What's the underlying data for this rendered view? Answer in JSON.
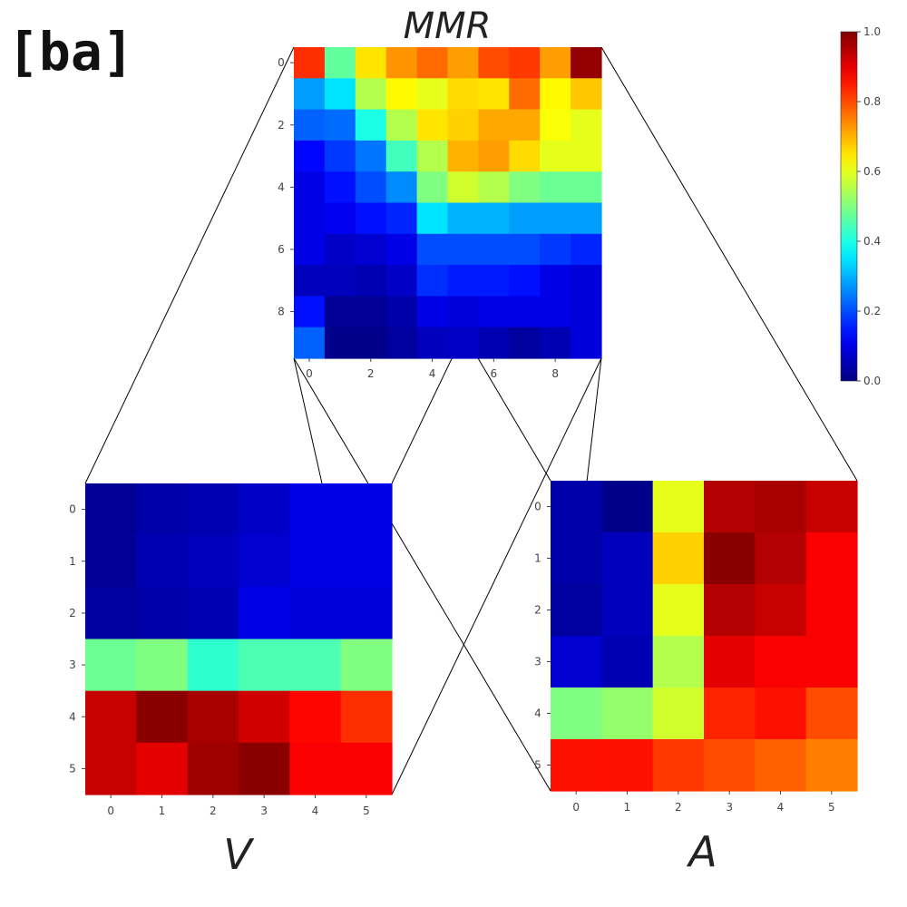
{
  "panel_label": "[ba]",
  "chart_data": [
    {
      "type": "heatmap",
      "title": "MMR",
      "x_ticks": [
        "0",
        "2",
        "4",
        "6",
        "8"
      ],
      "y_ticks": [
        "0",
        "2",
        "4",
        "6",
        "8"
      ],
      "colormap": "jet",
      "values": [
        [
          0.83,
          0.47,
          0.65,
          0.73,
          0.77,
          0.72,
          0.8,
          0.82,
          0.72,
          0.98
        ],
        [
          0.28,
          0.35,
          0.55,
          0.63,
          0.6,
          0.66,
          0.65,
          0.77,
          0.63,
          0.68
        ],
        [
          0.22,
          0.23,
          0.4,
          0.55,
          0.65,
          0.67,
          0.71,
          0.71,
          0.62,
          0.6
        ],
        [
          0.13,
          0.18,
          0.24,
          0.44,
          0.55,
          0.7,
          0.72,
          0.66,
          0.6,
          0.6
        ],
        [
          0.1,
          0.14,
          0.2,
          0.26,
          0.5,
          0.58,
          0.55,
          0.5,
          0.48,
          0.48
        ],
        [
          0.1,
          0.11,
          0.14,
          0.16,
          0.35,
          0.3,
          0.3,
          0.28,
          0.28,
          0.28
        ],
        [
          0.1,
          0.07,
          0.08,
          0.1,
          0.2,
          0.2,
          0.2,
          0.2,
          0.18,
          0.16
        ],
        [
          0.06,
          0.06,
          0.05,
          0.07,
          0.17,
          0.15,
          0.15,
          0.14,
          0.1,
          0.09
        ],
        [
          0.14,
          0.02,
          0.02,
          0.04,
          0.1,
          0.09,
          0.1,
          0.1,
          0.1,
          0.09
        ],
        [
          0.22,
          0.01,
          0.01,
          0.03,
          0.06,
          0.07,
          0.05,
          0.03,
          0.05,
          0.09
        ]
      ]
    },
    {
      "type": "heatmap",
      "title": "V",
      "x_ticks": [
        "0",
        "1",
        "2",
        "3",
        "4",
        "5"
      ],
      "y_ticks": [
        "0",
        "1",
        "2",
        "3",
        "4",
        "5"
      ],
      "colormap": "jet",
      "values": [
        [
          0.02,
          0.04,
          0.05,
          0.07,
          0.1,
          0.1
        ],
        [
          0.02,
          0.05,
          0.06,
          0.08,
          0.1,
          0.1
        ],
        [
          0.03,
          0.04,
          0.05,
          0.1,
          0.09,
          0.09
        ],
        [
          0.48,
          0.5,
          0.42,
          0.45,
          0.45,
          0.5
        ],
        [
          0.93,
          0.99,
          0.96,
          0.92,
          0.87,
          0.83
        ],
        [
          0.93,
          0.9,
          0.97,
          0.99,
          0.88,
          0.88
        ]
      ]
    },
    {
      "type": "heatmap",
      "title": "A",
      "x_ticks": [
        "0",
        "1",
        "2",
        "3",
        "4",
        "5"
      ],
      "y_ticks": [
        "0",
        "1",
        "2",
        "3",
        "4",
        "5"
      ],
      "colormap": "jet",
      "values": [
        [
          0.04,
          0.01,
          0.6,
          0.95,
          0.96,
          0.93
        ],
        [
          0.04,
          0.06,
          0.67,
          0.99,
          0.95,
          0.88
        ],
        [
          0.03,
          0.06,
          0.6,
          0.95,
          0.93,
          0.88
        ],
        [
          0.08,
          0.05,
          0.55,
          0.9,
          0.88,
          0.88
        ],
        [
          0.5,
          0.52,
          0.58,
          0.84,
          0.86,
          0.8
        ],
        [
          0.86,
          0.86,
          0.82,
          0.8,
          0.78,
          0.75
        ]
      ]
    }
  ],
  "colorbar": {
    "ticks": [
      "0.0",
      "0.2",
      "0.4",
      "0.6",
      "0.8",
      "1.0"
    ],
    "range": [
      0,
      1
    ]
  }
}
